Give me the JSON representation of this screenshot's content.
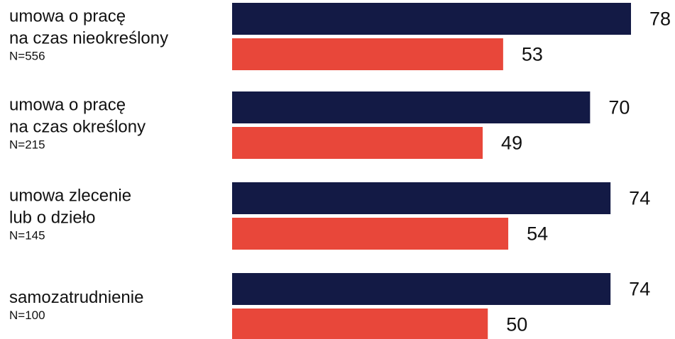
{
  "chart_data": {
    "type": "bar",
    "orientation": "horizontal",
    "categories": [
      {
        "lines": [
          "umowa o pracę",
          "na czas nieokreślony"
        ],
        "n": "N=556"
      },
      {
        "lines": [
          "umowa o pracę",
          "na czas określony"
        ],
        "n": "N=215"
      },
      {
        "lines": [
          "umowa zlecenie",
          "lub o dzieło"
        ],
        "n": "N=145"
      },
      {
        "lines": [
          "samozatrudnienie"
        ],
        "n": "N=100"
      }
    ],
    "series": [
      {
        "values": [
          78,
          70,
          74,
          74
        ],
        "color": "#131a45"
      },
      {
        "values": [
          53,
          49,
          54,
          50
        ],
        "color": "#e8473a"
      }
    ],
    "xlim": [
      0,
      78
    ],
    "grid": false,
    "legend": "none",
    "data_labels": true
  }
}
